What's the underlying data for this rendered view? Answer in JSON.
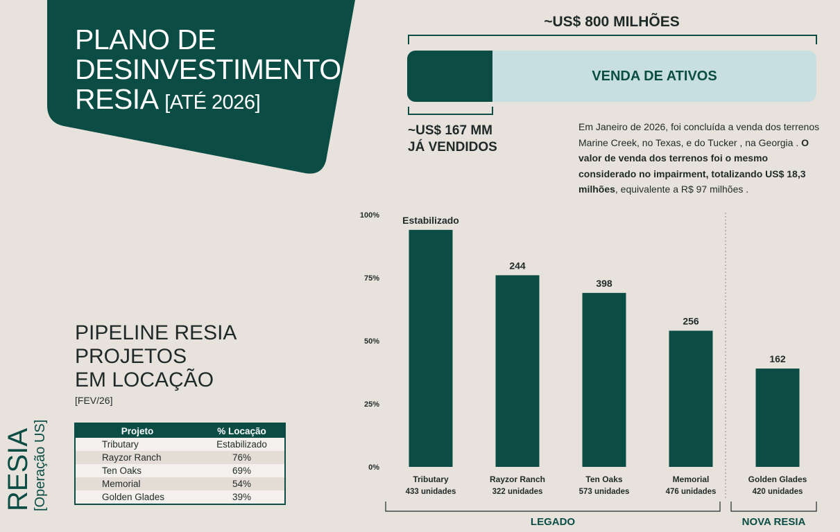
{
  "title": {
    "lines": [
      "PLANO DE",
      "DESINVESTIMENTO",
      "RESIA"
    ],
    "suffix": "[ATÉ 2026]"
  },
  "divestment": {
    "total_label": "~US$ 800 MILHÕES",
    "bar_label": "VENDA DE ATIVOS",
    "sold_line1": "~US$ 167 MM",
    "sold_line2": "JÁ VENDIDOS",
    "sold_fraction": 0.209
  },
  "note": {
    "p1": "Em Janeiro de 2026, foi concluída a venda dos terrenos Marine Creek, no Texas, e do Tucker , na Georgia . ",
    "p2_bold": "O valor de venda dos terrenos foi o mesmo considerado no impairment, totalizando US$ 18,3 milhões",
    "p3": ", equivalente a R$ 97 milhões ."
  },
  "pipeline": {
    "title_lines": [
      "PIPELINE RESIA",
      "PROJETOS",
      "EM LOCAÇÃO"
    ],
    "date": "[FEV/26]",
    "side_main": "RESIA",
    "side_sub": "[Operação US]",
    "table": {
      "headers": [
        "Projeto",
        "% Locação"
      ],
      "rows": [
        [
          "Tributary",
          "Estabilizado"
        ],
        [
          "Rayzor Ranch",
          "76%"
        ],
        [
          "Ten Oaks",
          "69%"
        ],
        [
          "Memorial",
          "54%"
        ],
        [
          "Golden Glades",
          "39%"
        ]
      ]
    }
  },
  "colors": {
    "brand_dark": "#0b4d45",
    "bar_light": "#c7dfe0",
    "background": "#e8e2dc"
  },
  "chart_data": {
    "type": "bar",
    "ylim": [
      0,
      100
    ],
    "yticks": [
      "0%",
      "25%",
      "50%",
      "75%",
      "100%"
    ],
    "ytick_values": [
      0,
      25,
      50,
      75,
      100
    ],
    "categories": [
      "Tributary",
      "Rayzor Ranch",
      "Ten Oaks",
      "Memorial",
      "Golden Glades"
    ],
    "sublabels": [
      "433 unidades",
      "322 unidades",
      "573 unidades",
      "476 unidades",
      "420 unidades"
    ],
    "values": [
      94,
      76,
      69,
      54,
      39
    ],
    "data_labels": [
      "Estabilizado",
      "244",
      "398",
      "256",
      "162"
    ],
    "groups": [
      {
        "label": "LEGADO",
        "members": [
          "Tributary",
          "Rayzor Ranch",
          "Ten Oaks",
          "Memorial"
        ]
      },
      {
        "label": "NOVA RESIA",
        "members": [
          "Golden Glades"
        ]
      }
    ],
    "grid": false,
    "bar_color": "#0b4d45"
  }
}
